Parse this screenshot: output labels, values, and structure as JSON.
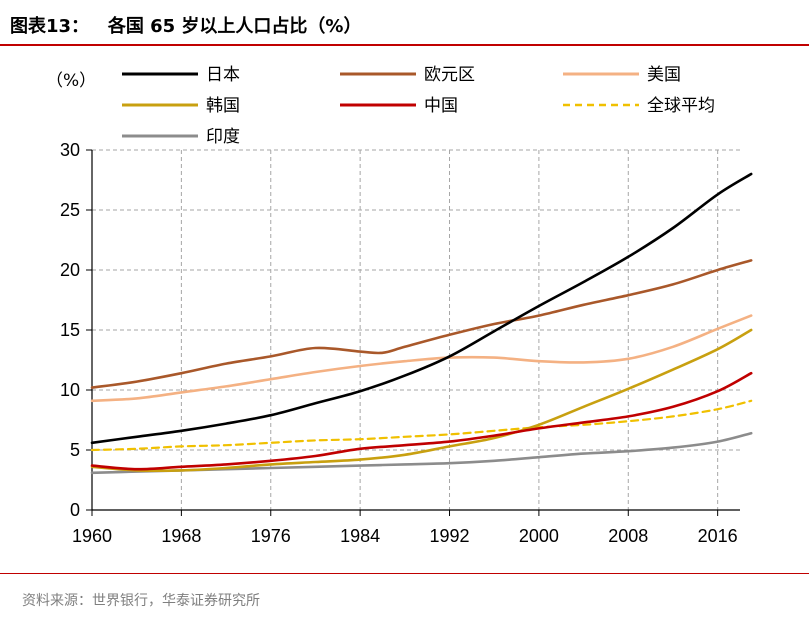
{
  "header": {
    "title": "图表13：   各国 65 岁以上人口占比（%）",
    "rule_color": "#c00000"
  },
  "footer": {
    "source": "资料来源：世界银行，华泰证券研究所"
  },
  "chart_data": {
    "type": "line",
    "unit_label": "（%）",
    "x_ticks": [
      1960,
      1968,
      1976,
      1984,
      1992,
      2000,
      2008,
      2016
    ],
    "xlim": [
      1960,
      2018
    ],
    "ylim": [
      0,
      30
    ],
    "y_ticks": [
      0,
      5,
      10,
      15,
      20,
      25,
      30
    ],
    "grid": true,
    "legend_position": "top",
    "series": [
      {
        "name": "日本",
        "color": "#000000",
        "dashed": false,
        "x": [
          1960,
          1964,
          1968,
          1972,
          1976,
          1980,
          1984,
          1988,
          1992,
          1996,
          2000,
          2004,
          2008,
          2012,
          2016,
          2019
        ],
        "y": [
          5.6,
          6.1,
          6.6,
          7.2,
          7.9,
          8.9,
          9.9,
          11.2,
          12.8,
          14.9,
          17.0,
          19.0,
          21.1,
          23.5,
          26.3,
          28.0
        ]
      },
      {
        "name": "欧元区",
        "color": "#a9582a",
        "dashed": false,
        "x": [
          1960,
          1964,
          1968,
          1972,
          1976,
          1980,
          1984,
          1986,
          1988,
          1992,
          1996,
          2000,
          2004,
          2008,
          2012,
          2016,
          2019
        ],
        "y": [
          10.2,
          10.7,
          11.4,
          12.2,
          12.8,
          13.5,
          13.2,
          13.1,
          13.6,
          14.6,
          15.5,
          16.2,
          17.1,
          17.9,
          18.8,
          20.0,
          20.8
        ]
      },
      {
        "name": "美国",
        "color": "#f4b183",
        "dashed": false,
        "x": [
          1960,
          1964,
          1968,
          1972,
          1976,
          1980,
          1984,
          1988,
          1992,
          1996,
          2000,
          2004,
          2008,
          2012,
          2016,
          2019
        ],
        "y": [
          9.1,
          9.3,
          9.8,
          10.3,
          10.9,
          11.5,
          12.0,
          12.4,
          12.7,
          12.7,
          12.4,
          12.3,
          12.6,
          13.6,
          15.1,
          16.2
        ]
      },
      {
        "name": "韩国",
        "color": "#c8a010",
        "dashed": false,
        "x": [
          1960,
          1964,
          1968,
          1972,
          1976,
          1980,
          1984,
          1988,
          1992,
          1996,
          2000,
          2004,
          2008,
          2012,
          2016,
          2019
        ],
        "y": [
          3.6,
          3.3,
          3.3,
          3.5,
          3.8,
          4.0,
          4.2,
          4.6,
          5.3,
          6.0,
          7.1,
          8.6,
          10.1,
          11.7,
          13.4,
          15.0
        ]
      },
      {
        "name": "中国",
        "color": "#c00000",
        "dashed": false,
        "x": [
          1960,
          1964,
          1968,
          1972,
          1976,
          1980,
          1984,
          1988,
          1992,
          1996,
          2000,
          2004,
          2008,
          2012,
          2016,
          2019
        ],
        "y": [
          3.7,
          3.4,
          3.6,
          3.8,
          4.1,
          4.5,
          5.1,
          5.4,
          5.7,
          6.2,
          6.8,
          7.3,
          7.8,
          8.6,
          9.9,
          11.4
        ]
      },
      {
        "name": "全球平均",
        "color": "#f0c000",
        "dashed": true,
        "x": [
          1960,
          1964,
          1968,
          1972,
          1976,
          1980,
          1984,
          1988,
          1992,
          1996,
          2000,
          2004,
          2008,
          2012,
          2016,
          2019
        ],
        "y": [
          5.0,
          5.1,
          5.3,
          5.4,
          5.6,
          5.8,
          5.9,
          6.1,
          6.3,
          6.6,
          6.9,
          7.1,
          7.4,
          7.8,
          8.4,
          9.1
        ]
      },
      {
        "name": "印度",
        "color": "#8c8c8c",
        "dashed": false,
        "x": [
          1960,
          1964,
          1968,
          1972,
          1976,
          1980,
          1984,
          1988,
          1992,
          1996,
          2000,
          2004,
          2008,
          2012,
          2016,
          2019
        ],
        "y": [
          3.1,
          3.2,
          3.3,
          3.4,
          3.5,
          3.6,
          3.7,
          3.8,
          3.9,
          4.1,
          4.4,
          4.7,
          4.9,
          5.2,
          5.7,
          6.4
        ]
      }
    ]
  }
}
